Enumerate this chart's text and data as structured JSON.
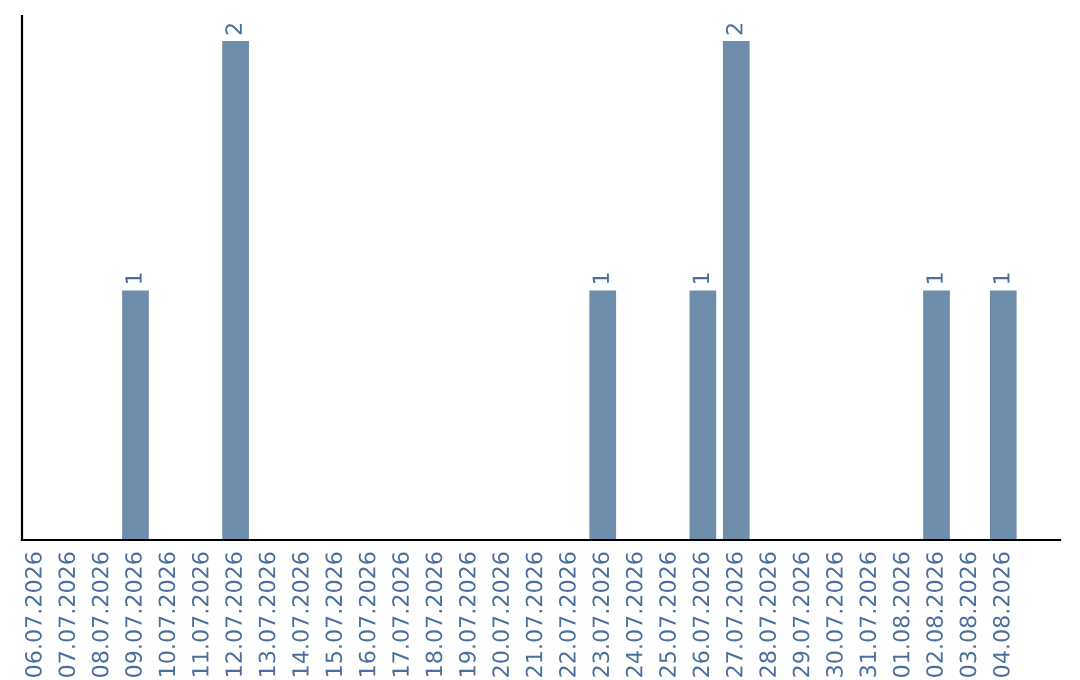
{
  "chart_data": {
    "type": "bar",
    "categories": [
      "06.07.2026",
      "07.07.2026",
      "08.07.2026",
      "09.07.2026",
      "10.07.2026",
      "11.07.2026",
      "12.07.2026",
      "13.07.2026",
      "14.07.2026",
      "15.07.2026",
      "16.07.2026",
      "17.07.2026",
      "18.07.2026",
      "19.07.2026",
      "20.07.2026",
      "21.07.2026",
      "22.07.2026",
      "23.07.2026",
      "24.07.2026",
      "25.07.2026",
      "26.07.2026",
      "27.07.2026",
      "28.07.2026",
      "29.07.2026",
      "30.07.2026",
      "31.07.2026",
      "01.08.2026",
      "02.08.2026",
      "03.08.2026",
      "04.08.2026"
    ],
    "values": [
      0,
      0,
      0,
      1,
      0,
      0,
      2,
      0,
      0,
      0,
      0,
      0,
      0,
      0,
      0,
      0,
      0,
      1,
      0,
      0,
      1,
      2,
      0,
      0,
      0,
      0,
      0,
      1,
      0,
      1
    ],
    "value_labels": [
      null,
      null,
      null,
      "1",
      null,
      null,
      "2",
      null,
      null,
      null,
      null,
      null,
      null,
      null,
      null,
      null,
      null,
      "1",
      null,
      null,
      "1",
      "2",
      null,
      null,
      null,
      null,
      null,
      "1",
      null,
      "1"
    ],
    "color": "#6e8dab",
    "tick_labels": "x",
    "grid": false,
    "legend": false
  }
}
